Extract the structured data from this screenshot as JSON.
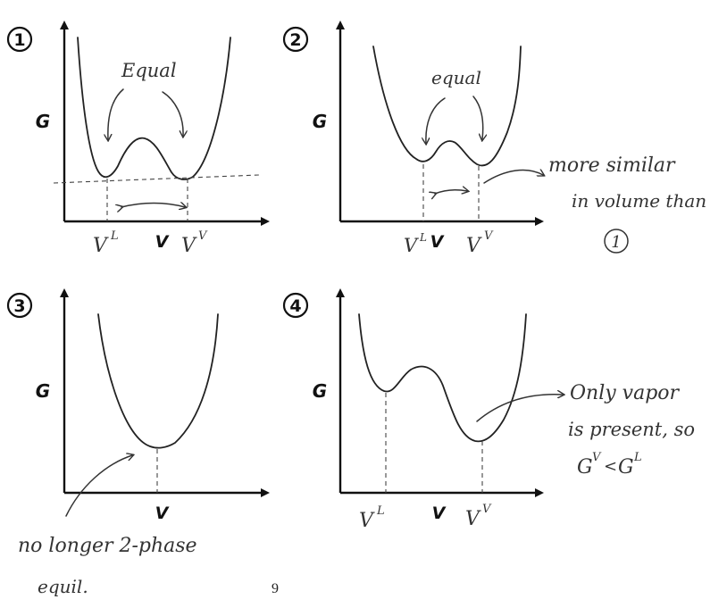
{
  "panels": [
    {
      "number": "1",
      "y_label": "G",
      "x_label": "V",
      "tick_left": "V",
      "tick_left_sup": "L",
      "tick_right": "V",
      "tick_right_sup": "V",
      "note": "Equal"
    },
    {
      "number": "2",
      "y_label": "G",
      "x_label": "V",
      "tick_left": "V",
      "tick_left_sup": "L",
      "tick_right": "V",
      "tick_right_sup": "V",
      "note": "equal",
      "side_note_line1": "more similar",
      "side_note_line2": "in volume than",
      "side_note_ref": "1"
    },
    {
      "number": "3",
      "y_label": "G",
      "x_label": "V",
      "note_line1": "no longer 2-phase",
      "note_line2": "equil."
    },
    {
      "number": "4",
      "y_label": "G",
      "x_label": "V",
      "tick_left": "V",
      "tick_left_sup": "L",
      "tick_right": "V",
      "tick_right_sup": "V",
      "note_line1": "Only vapor",
      "note_line2": "is present, so",
      "note_line3_a": "G",
      "note_line3_a_sup": "V",
      "note_line3_op": "<",
      "note_line3_b": "G",
      "note_line3_b_sup": "L"
    }
  ],
  "page_number": "9"
}
